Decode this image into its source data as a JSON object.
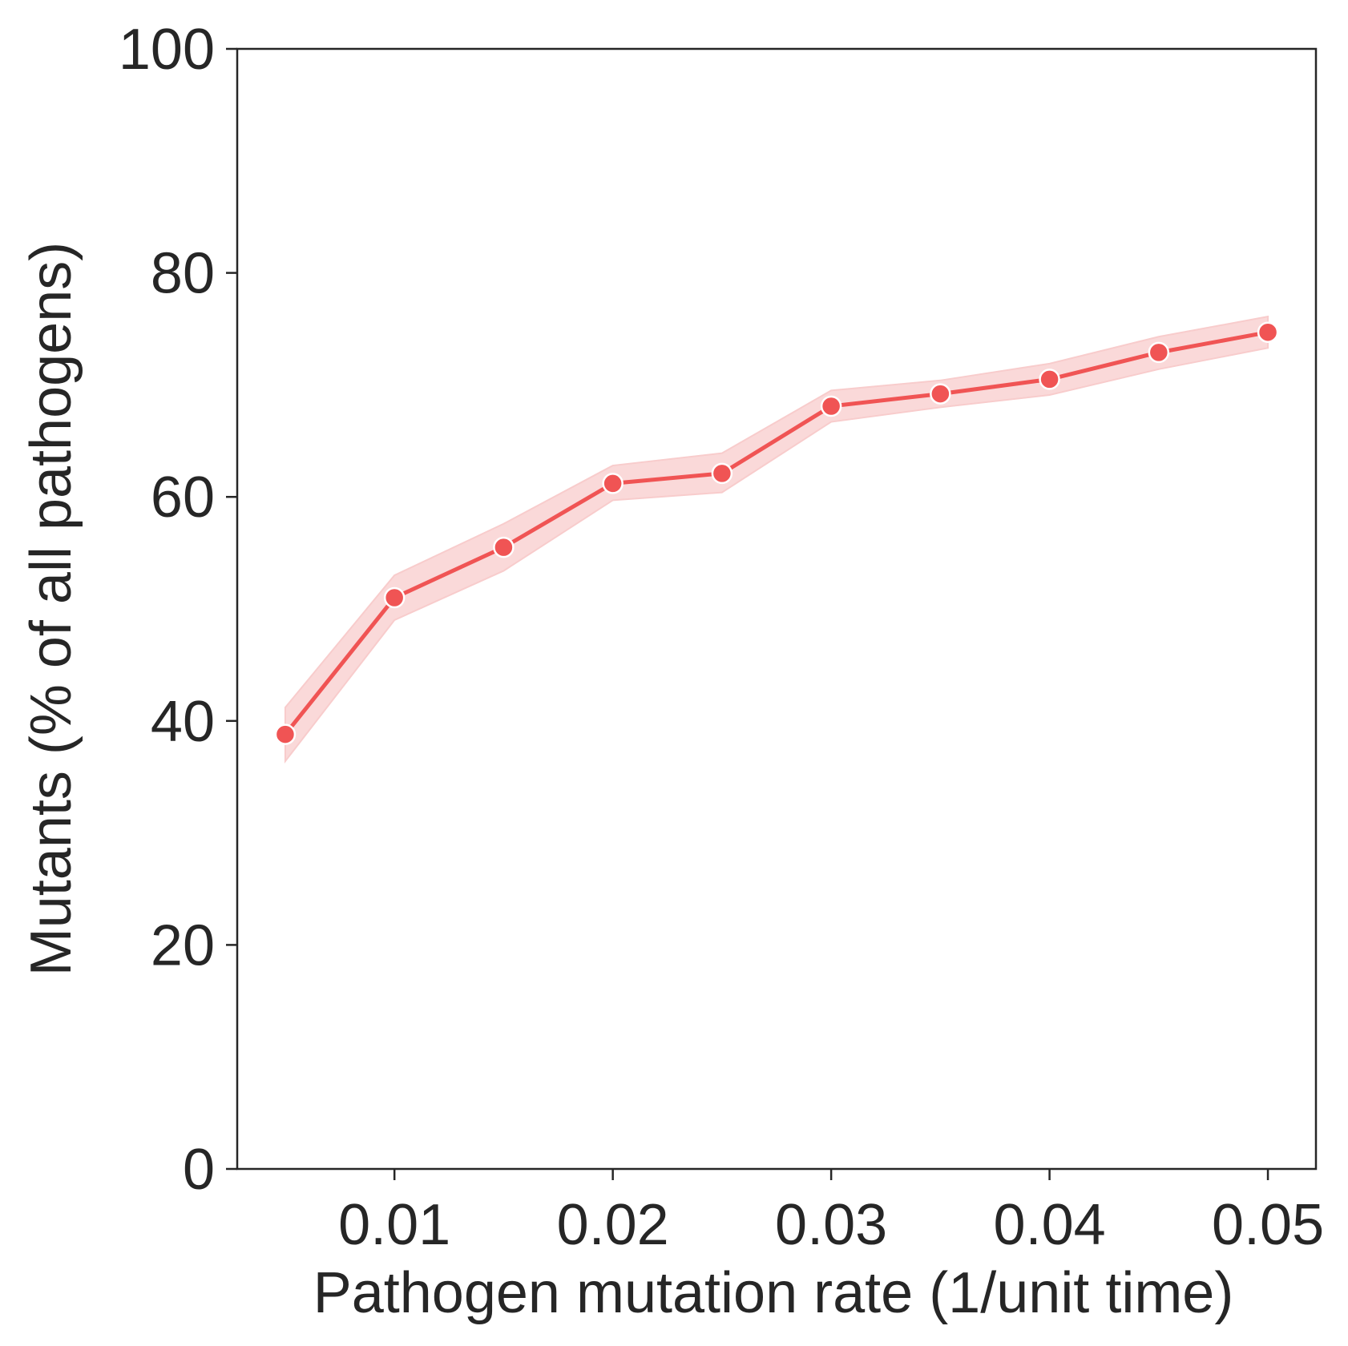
{
  "chart_data": {
    "type": "line",
    "title": "",
    "xlabel": "Pathogen mutation rate (1/unit time)",
    "ylabel": "Mutants (% of all pathogens)",
    "xlim": [
      0.0028,
      0.0522
    ],
    "ylim": [
      0,
      100
    ],
    "xticks": [
      "0.01",
      "0.02",
      "0.03",
      "0.04",
      "0.05"
    ],
    "yticks": [
      "0",
      "20",
      "40",
      "60",
      "80",
      "100"
    ],
    "grid": false,
    "legend": "none",
    "series": [
      {
        "color": "#f05454",
        "band_color": "#f8cccc",
        "x": [
          0.005,
          0.01,
          0.015,
          0.02,
          0.025,
          0.03,
          0.035,
          0.04,
          0.045,
          0.05
        ],
        "y": [
          38.8,
          51.0,
          55.5,
          61.2,
          62.1,
          68.1,
          69.2,
          70.5,
          72.9,
          74.7
        ],
        "ci_lower": [
          36.4,
          49.0,
          53.4,
          59.7,
          60.4,
          66.7,
          68.0,
          69.1,
          71.4,
          73.3
        ],
        "ci_upper": [
          41.2,
          53.0,
          57.6,
          62.8,
          63.9,
          69.5,
          70.4,
          71.9,
          74.3,
          76.1
        ]
      }
    ]
  }
}
